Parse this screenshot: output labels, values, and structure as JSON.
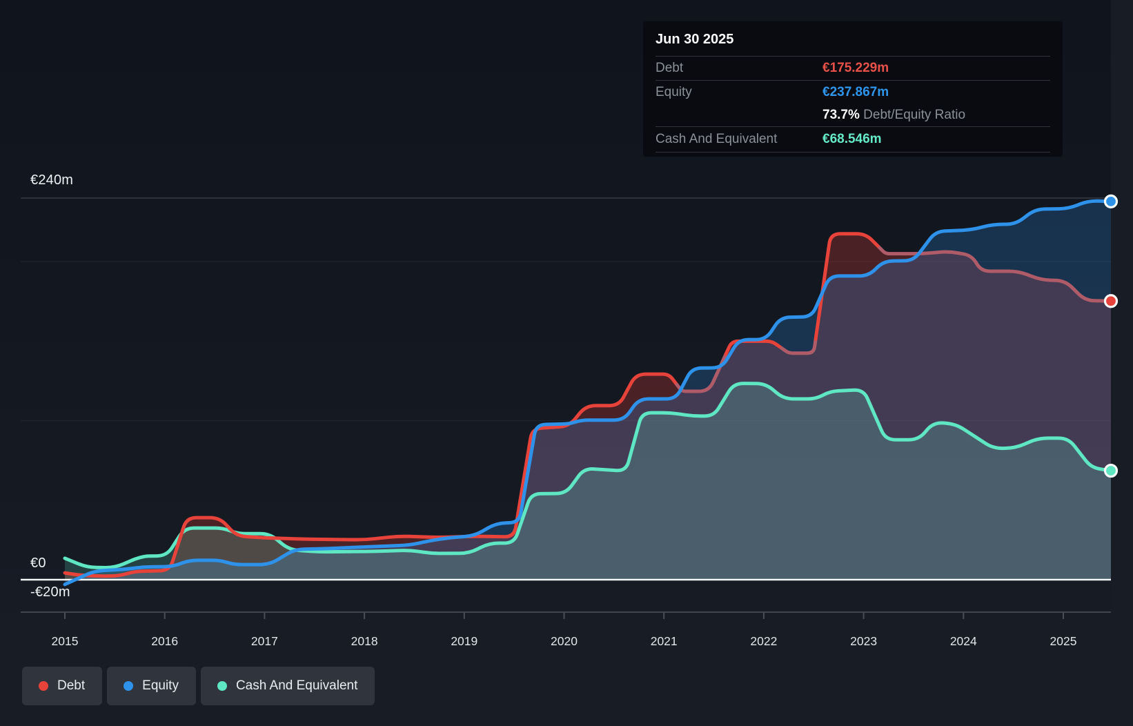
{
  "tooltip": {
    "date": "Jun 30 2025",
    "debt_label": "Debt",
    "debt_value": "€175.229m",
    "equity_label": "Equity",
    "equity_value": "€237.867m",
    "ratio_value": "73.7%",
    "ratio_label": " Debt/Equity Ratio",
    "cash_label": "Cash And Equivalent",
    "cash_value": "€68.546m"
  },
  "y_axis": {
    "top": "€240m",
    "zero": "€0",
    "bottom": "-€20m"
  },
  "x_axis": {
    "years": [
      "2015",
      "2016",
      "2017",
      "2018",
      "2019",
      "2020",
      "2021",
      "2022",
      "2023",
      "2024",
      "2025"
    ]
  },
  "legend": {
    "items": [
      {
        "label": "Debt",
        "color": "#e8433b"
      },
      {
        "label": "Equity",
        "color": "#2e92ea"
      },
      {
        "label": "Cash And Equivalent",
        "color": "#5fe6c3"
      }
    ]
  },
  "colors": {
    "background": "#171c25",
    "plot_top": "#10141c",
    "plot_bottom": "#161b24",
    "debt": "#e8433b",
    "debt_muted": "#b05c68",
    "equity": "#2e92ea",
    "cash": "#5fe6c3",
    "debt_fill": "rgba(232,62,54,0.26)",
    "equity_fill": "rgba(45,142,232,0.24)",
    "cash_fill": "rgba(98,230,200,0.20)",
    "zero_line": "#f4f6f8",
    "grid_major": "#363b43",
    "grid_minor": "#20252d",
    "axis_line": "#42464e",
    "tick": "#4a4f57"
  },
  "chart_data": {
    "type": "area",
    "unit": "€m",
    "title": "",
    "xlabel": "",
    "ylabel": "",
    "x_range": [
      2015,
      2025.48
    ],
    "ylim": [
      -20,
      240
    ],
    "grid_values": [
      240,
      200,
      100,
      0
    ],
    "labeled_grid_values": [
      240,
      0,
      -20
    ],
    "legend_position": "bottom-left",
    "series": [
      {
        "name": "Debt",
        "end_value": 175.229,
        "muted_ranges": [
          [
            2021.13,
            2021.62
          ],
          [
            2022.18,
            2022.52
          ],
          [
            2023.16,
            2025.48
          ]
        ],
        "points": [
          [
            2015.0,
            4.3
          ],
          [
            2015.15,
            2.8
          ],
          [
            2015.35,
            2.2
          ],
          [
            2015.55,
            2.5
          ],
          [
            2015.7,
            5.2
          ],
          [
            2016.05,
            5.8
          ],
          [
            2016.22,
            39
          ],
          [
            2016.55,
            39
          ],
          [
            2016.72,
            27.5
          ],
          [
            2017.0,
            26.3
          ],
          [
            2017.4,
            25.5
          ],
          [
            2018.0,
            25.1
          ],
          [
            2018.35,
            27.4
          ],
          [
            2018.75,
            26.6
          ],
          [
            2019.1,
            27.3
          ],
          [
            2019.5,
            26.9
          ],
          [
            2019.68,
            95
          ],
          [
            2020.05,
            96.5
          ],
          [
            2020.22,
            109.5
          ],
          [
            2020.55,
            109.5
          ],
          [
            2020.72,
            129.3
          ],
          [
            2021.05,
            129.3
          ],
          [
            2021.18,
            118.5
          ],
          [
            2021.45,
            118.5
          ],
          [
            2021.68,
            150
          ],
          [
            2022.08,
            150
          ],
          [
            2022.25,
            142.5
          ],
          [
            2022.5,
            142.5
          ],
          [
            2022.67,
            217.5
          ],
          [
            2023.02,
            217.5
          ],
          [
            2023.22,
            205
          ],
          [
            2023.6,
            205
          ],
          [
            2023.85,
            206.5
          ],
          [
            2024.08,
            204
          ],
          [
            2024.18,
            194
          ],
          [
            2024.55,
            194
          ],
          [
            2024.78,
            188.5
          ],
          [
            2025.02,
            188
          ],
          [
            2025.22,
            175.5
          ],
          [
            2025.48,
            175.229
          ]
        ]
      },
      {
        "name": "Equity",
        "end_value": 237.867,
        "muted_ranges": [],
        "points": [
          [
            2015.0,
            -3
          ],
          [
            2015.12,
            0.5
          ],
          [
            2015.3,
            5.5
          ],
          [
            2015.6,
            6.5
          ],
          [
            2015.78,
            8
          ],
          [
            2016.08,
            8.3
          ],
          [
            2016.25,
            12.2
          ],
          [
            2016.55,
            12.2
          ],
          [
            2016.7,
            9.5
          ],
          [
            2017.05,
            9.5
          ],
          [
            2017.3,
            19
          ],
          [
            2017.6,
            19.5
          ],
          [
            2018.0,
            20.6
          ],
          [
            2018.45,
            21.7
          ],
          [
            2018.68,
            24.8
          ],
          [
            2018.88,
            26.6
          ],
          [
            2019.1,
            27.5
          ],
          [
            2019.32,
            35.5
          ],
          [
            2019.55,
            36
          ],
          [
            2019.72,
            97.5
          ],
          [
            2020.05,
            98
          ],
          [
            2020.18,
            100.4
          ],
          [
            2020.6,
            100.4
          ],
          [
            2020.75,
            113.7
          ],
          [
            2021.12,
            113.7
          ],
          [
            2021.28,
            133
          ],
          [
            2021.58,
            133.3
          ],
          [
            2021.75,
            151
          ],
          [
            2022.02,
            151
          ],
          [
            2022.17,
            165
          ],
          [
            2022.48,
            165.3
          ],
          [
            2022.66,
            191
          ],
          [
            2023.05,
            191
          ],
          [
            2023.2,
            200.4
          ],
          [
            2023.5,
            200.6
          ],
          [
            2023.72,
            219
          ],
          [
            2024.08,
            220
          ],
          [
            2024.3,
            223.5
          ],
          [
            2024.52,
            223.5
          ],
          [
            2024.72,
            233
          ],
          [
            2025.05,
            233.3
          ],
          [
            2025.25,
            238.3
          ],
          [
            2025.48,
            237.867
          ]
        ]
      },
      {
        "name": "Cash And Equivalent",
        "end_value": 68.546,
        "muted_ranges": [],
        "points": [
          [
            2015.0,
            13.5
          ],
          [
            2015.22,
            7.8
          ],
          [
            2015.5,
            7.5
          ],
          [
            2015.7,
            13
          ],
          [
            2015.8,
            14.8
          ],
          [
            2016.02,
            15
          ],
          [
            2016.2,
            32.5
          ],
          [
            2016.58,
            32.5
          ],
          [
            2016.73,
            29
          ],
          [
            2017.05,
            29
          ],
          [
            2017.25,
            18.8
          ],
          [
            2017.55,
            17.5
          ],
          [
            2018.1,
            17.8
          ],
          [
            2018.45,
            18.6
          ],
          [
            2018.68,
            16.5
          ],
          [
            2019.05,
            16.6
          ],
          [
            2019.25,
            23
          ],
          [
            2019.5,
            23
          ],
          [
            2019.67,
            54
          ],
          [
            2020.02,
            54.3
          ],
          [
            2020.2,
            70
          ],
          [
            2020.62,
            68.3
          ],
          [
            2020.78,
            105
          ],
          [
            2021.07,
            105
          ],
          [
            2021.3,
            102.8
          ],
          [
            2021.5,
            103
          ],
          [
            2021.7,
            123.5
          ],
          [
            2022.02,
            123.3
          ],
          [
            2022.2,
            113.7
          ],
          [
            2022.52,
            113.7
          ],
          [
            2022.67,
            118.5
          ],
          [
            2023.0,
            119.5
          ],
          [
            2023.22,
            88
          ],
          [
            2023.55,
            88
          ],
          [
            2023.7,
            99
          ],
          [
            2023.92,
            98
          ],
          [
            2024.3,
            82.5
          ],
          [
            2024.52,
            82.8
          ],
          [
            2024.75,
            89
          ],
          [
            2025.05,
            89
          ],
          [
            2025.28,
            70.5
          ],
          [
            2025.48,
            68.546
          ]
        ]
      }
    ]
  }
}
